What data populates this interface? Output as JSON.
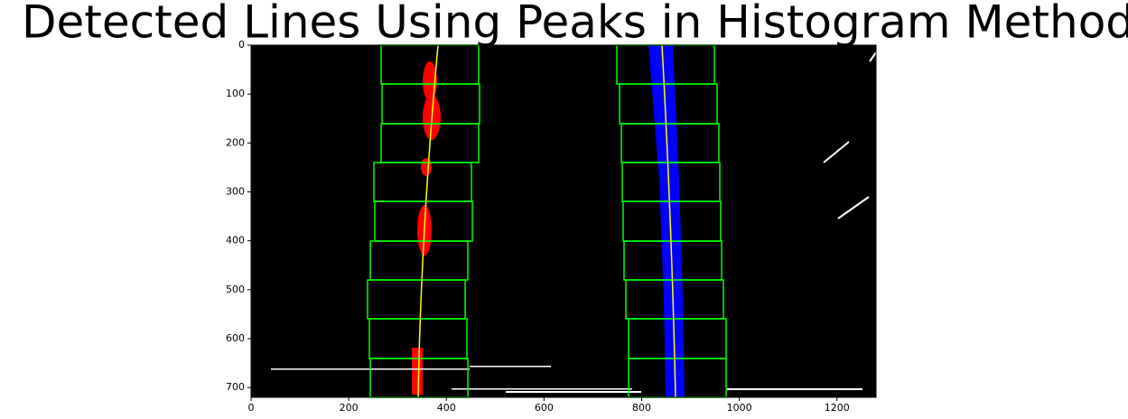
{
  "chart_data": {
    "type": "image",
    "title": "Detected Lines Using Peaks in Histogram Method",
    "xlim": [
      0,
      1280
    ],
    "ylim": [
      720,
      0
    ],
    "xticks": [
      0,
      200,
      400,
      600,
      800,
      1000,
      1200
    ],
    "yticks": [
      0,
      100,
      200,
      300,
      400,
      500,
      600,
      700
    ]
  }
}
